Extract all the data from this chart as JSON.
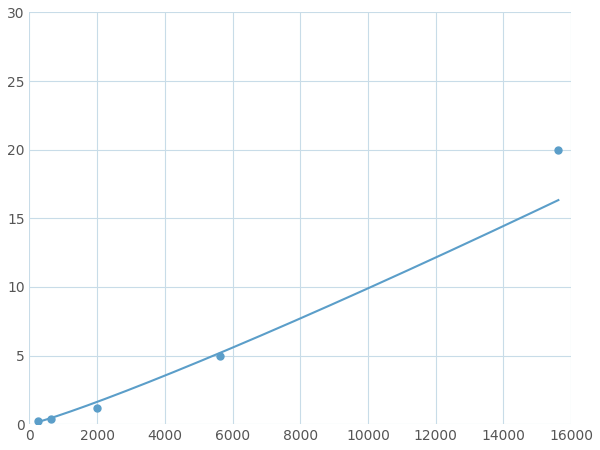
{
  "x_points": [
    250,
    625,
    2000,
    5625,
    15625
  ],
  "y_points": [
    0.2,
    0.4,
    1.2,
    5.0,
    20.0
  ],
  "line_color": "#5b9ec9",
  "marker_color": "#5b9ec9",
  "marker_size": 5,
  "line_width": 1.5,
  "xlim": [
    0,
    16000
  ],
  "ylim": [
    0,
    30
  ],
  "xticks": [
    0,
    2000,
    4000,
    6000,
    8000,
    10000,
    12000,
    14000,
    16000
  ],
  "yticks": [
    0,
    5,
    10,
    15,
    20,
    25,
    30
  ],
  "grid_color": "#c8dce8",
  "background_color": "#ffffff",
  "tick_label_color": "#555555",
  "tick_label_size": 10
}
